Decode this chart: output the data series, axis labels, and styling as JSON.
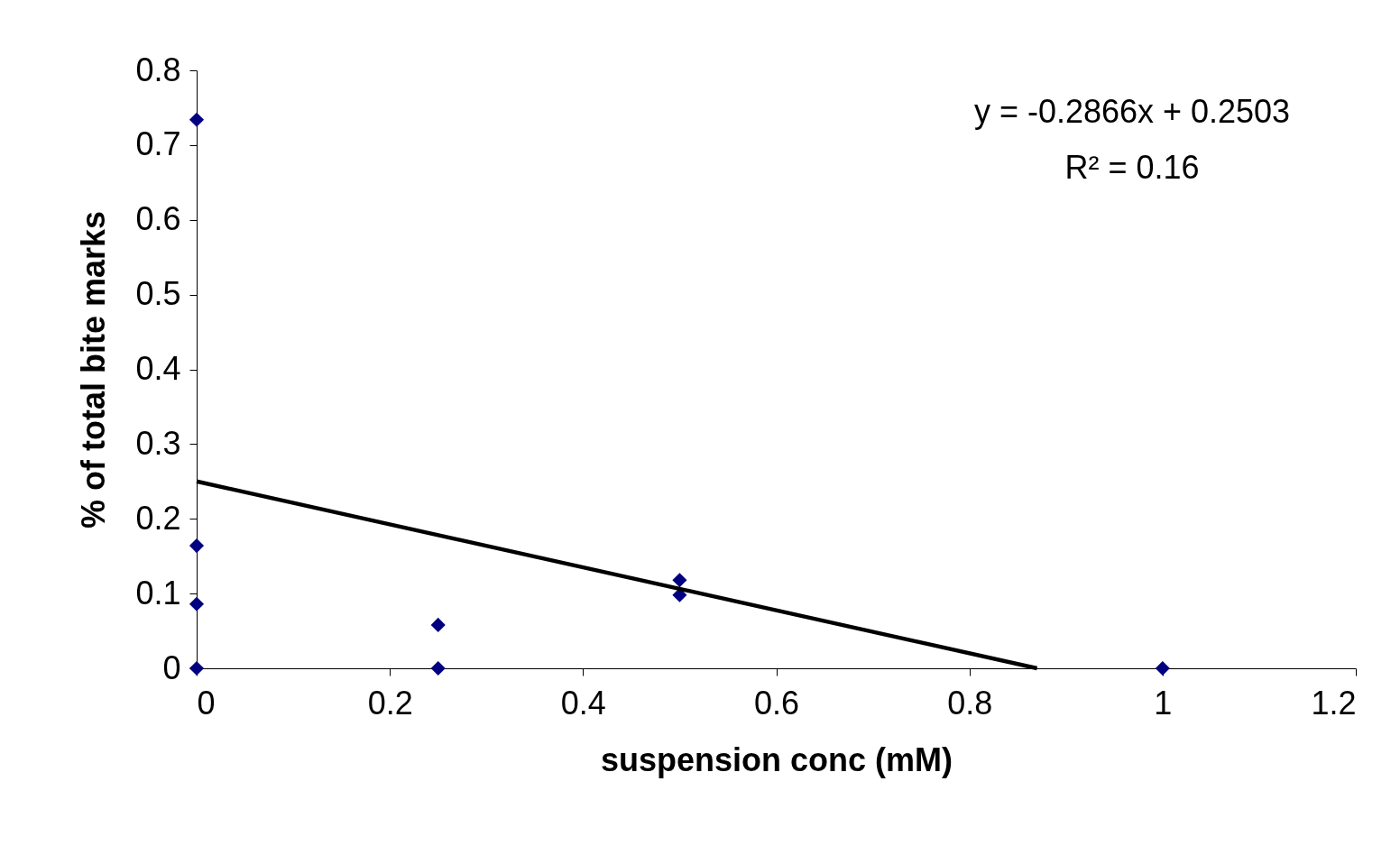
{
  "chart_data": {
    "type": "scatter",
    "xlabel": "suspension conc (mM)",
    "ylabel": "% of total bite marks",
    "xlim": [
      0,
      1.2
    ],
    "xticks": [
      0,
      0.2,
      0.4,
      0.6,
      0.8,
      1,
      1.2
    ],
    "ylim": [
      0,
      0.8
    ],
    "yticks": [
      0,
      0.1,
      0.2,
      0.3,
      0.4,
      0.5,
      0.6,
      0.7,
      0.8
    ],
    "grid": false,
    "series": [
      {
        "marker": "diamond",
        "color": "#000080",
        "x": [
          0,
          0,
          0,
          0,
          0.25,
          0.25,
          0.5,
          0.5,
          1
        ],
        "values": [
          0.734,
          0.164,
          0.086,
          0,
          0.058,
          0,
          0.118,
          0.098,
          0
        ]
      },
      {
        "type": "line",
        "marker": "none",
        "color": "#000000",
        "line_style": "solid",
        "x": [
          0,
          0.87
        ],
        "values": [
          0.25,
          0
        ]
      }
    ],
    "annotations": [
      "y = -0.2866x + 0.2503",
      "R² = 0.16"
    ]
  }
}
